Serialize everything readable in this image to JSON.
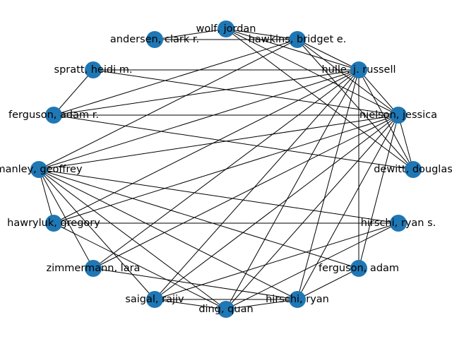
{
  "graph": {
    "node_color": "#1f77b4",
    "edge_color": "#000000",
    "nodes": [
      {
        "id": "wolf",
        "label": "wolf, jordan"
      },
      {
        "id": "hawkins",
        "label": "hawkins, bridget e."
      },
      {
        "id": "hulle",
        "label": "hulle, j. russell"
      },
      {
        "id": "nielson",
        "label": "nielson, jessica"
      },
      {
        "id": "dewitt",
        "label": "dewitt, douglas"
      },
      {
        "id": "hirschi_s",
        "label": "hirschi, ryan s."
      },
      {
        "id": "ferguson_adam",
        "label": "ferguson, adam"
      },
      {
        "id": "hirschi",
        "label": "hirschi, ryan"
      },
      {
        "id": "ding",
        "label": "ding, quan"
      },
      {
        "id": "saigal",
        "label": "saigal, rajiv"
      },
      {
        "id": "zimmermann",
        "label": "zimmermann, lara"
      },
      {
        "id": "hawryluk",
        "label": "hawryluk, gregory"
      },
      {
        "id": "manley",
        "label": "manley, geoffrey"
      },
      {
        "id": "ferguson_r",
        "label": "ferguson, adam r."
      },
      {
        "id": "spratt",
        "label": "spratt, heidi m."
      },
      {
        "id": "andersen",
        "label": "andersen, clark r."
      }
    ],
    "edges": [
      [
        "wolf",
        "andersen"
      ],
      [
        "wolf",
        "hawkins"
      ],
      [
        "wolf",
        "hulle"
      ],
      [
        "wolf",
        "nielson"
      ],
      [
        "wolf",
        "dewitt"
      ],
      [
        "hawkins",
        "hulle"
      ],
      [
        "hawkins",
        "nielson"
      ],
      [
        "hawkins",
        "dewitt"
      ],
      [
        "hawkins",
        "andersen"
      ],
      [
        "hawkins",
        "ferguson_r"
      ],
      [
        "hawkins",
        "manley"
      ],
      [
        "hulle",
        "spratt"
      ],
      [
        "hulle",
        "ferguson_r"
      ],
      [
        "hulle",
        "nielson"
      ],
      [
        "hulle",
        "dewitt"
      ],
      [
        "hulle",
        "ferguson_adam"
      ],
      [
        "hulle",
        "hirschi"
      ],
      [
        "hulle",
        "ding"
      ],
      [
        "hulle",
        "saigal"
      ],
      [
        "hulle",
        "zimmermann"
      ],
      [
        "hulle",
        "hawryluk"
      ],
      [
        "hulle",
        "manley"
      ],
      [
        "nielson",
        "spratt"
      ],
      [
        "nielson",
        "ferguson_r"
      ],
      [
        "nielson",
        "manley"
      ],
      [
        "nielson",
        "hawryluk"
      ],
      [
        "nielson",
        "zimmermann"
      ],
      [
        "nielson",
        "saigal"
      ],
      [
        "nielson",
        "ding"
      ],
      [
        "nielson",
        "hirschi"
      ],
      [
        "nielson",
        "ferguson_adam"
      ],
      [
        "nielson",
        "dewitt"
      ],
      [
        "dewitt",
        "ferguson_r"
      ],
      [
        "spratt",
        "ferguson_r"
      ],
      [
        "manley",
        "hirschi_s"
      ],
      [
        "manley",
        "ferguson_adam"
      ],
      [
        "manley",
        "hirschi"
      ],
      [
        "manley",
        "ding"
      ],
      [
        "manley",
        "saigal"
      ],
      [
        "manley",
        "zimmermann"
      ],
      [
        "manley",
        "hawryluk"
      ],
      [
        "hawryluk",
        "hirschi_s"
      ],
      [
        "hawryluk",
        "ding"
      ],
      [
        "hirschi_s",
        "saigal"
      ],
      [
        "hirschi_s",
        "ding"
      ],
      [
        "ferguson_adam",
        "hirschi"
      ],
      [
        "zimmermann",
        "hirschi"
      ],
      [
        "saigal",
        "ding"
      ],
      [
        "saigal",
        "hirschi"
      ],
      [
        "ding",
        "hirschi"
      ]
    ]
  }
}
